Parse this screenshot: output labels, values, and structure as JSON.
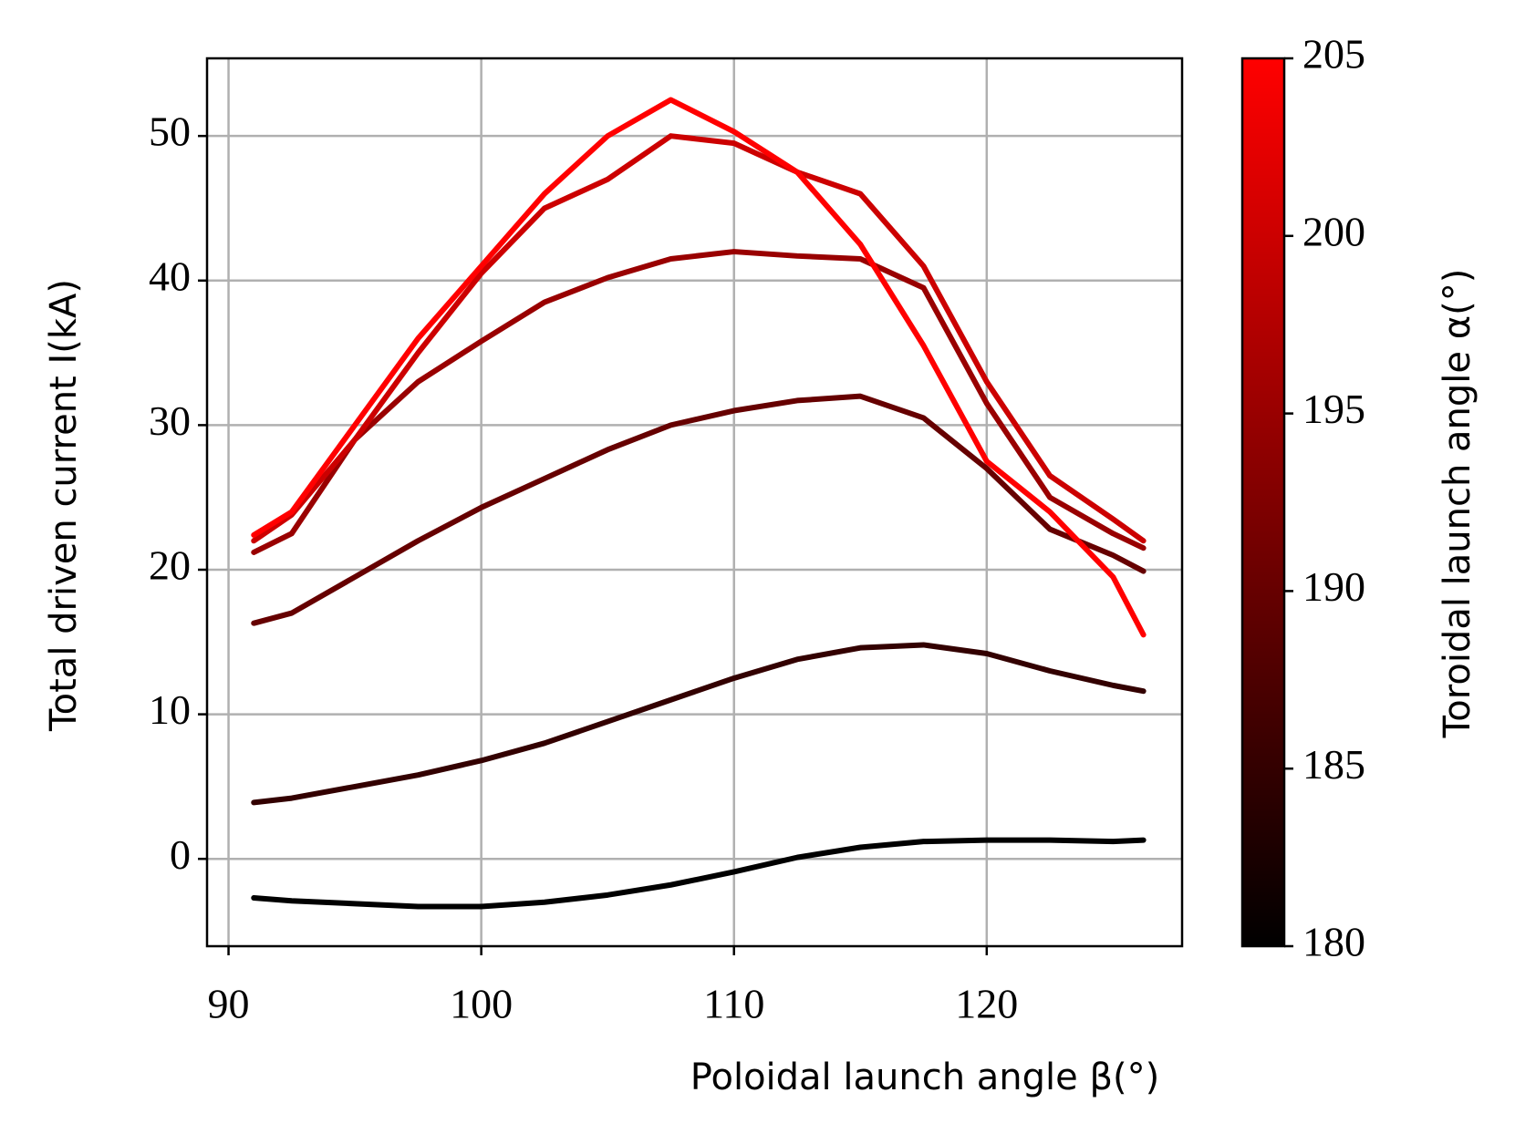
{
  "chart_data": {
    "type": "line",
    "xlabel": "Poloidal launch angle β(°)",
    "ylabel": "Total driven current I(kA)",
    "x": [
      91,
      92.5,
      95,
      97.5,
      100,
      102.5,
      105,
      107.5,
      110,
      112.5,
      115,
      117.5,
      120,
      122.5,
      125,
      126.2
    ],
    "series": [
      {
        "color": "#000000",
        "values": [
          -2.7,
          -2.9,
          -3.1,
          -3.3,
          -3.3,
          -3.0,
          -2.5,
          -1.8,
          -0.9,
          0.1,
          0.8,
          1.2,
          1.3,
          1.3,
          1.2,
          1.3
        ]
      },
      {
        "color": "#330000",
        "values": [
          3.9,
          4.2,
          5.0,
          5.8,
          6.8,
          8.0,
          9.5,
          11.0,
          12.5,
          13.8,
          14.6,
          14.8,
          14.2,
          13.0,
          12.0,
          11.6
        ]
      },
      {
        "color": "#660000",
        "values": [
          16.3,
          17.0,
          19.5,
          22.0,
          24.3,
          26.3,
          28.3,
          30.0,
          31.0,
          31.7,
          32.0,
          30.5,
          27.0,
          22.8,
          21.0,
          19.9
        ]
      },
      {
        "color": "#990000",
        "values": [
          21.2,
          22.5,
          29.0,
          33.0,
          35.8,
          38.5,
          40.2,
          41.5,
          42.0,
          41.7,
          41.5,
          39.5,
          31.5,
          25.0,
          22.5,
          21.5
        ]
      },
      {
        "color": "#cc0000",
        "values": [
          22.0,
          23.8,
          29.0,
          35.0,
          40.5,
          45.0,
          47.0,
          50.0,
          49.5,
          47.5,
          46.0,
          41.0,
          33.0,
          26.5,
          23.5,
          22.0
        ]
      },
      {
        "color": "#ff0000",
        "values": [
          22.4,
          24.0,
          30.0,
          36.0,
          41.0,
          46.0,
          50.0,
          52.5,
          50.3,
          47.5,
          42.5,
          35.5,
          27.5,
          24.0,
          19.5,
          15.5
        ]
      }
    ],
    "xlim": [
      89.15,
      127.73
    ],
    "ylim": [
      -6.04,
      55.37
    ],
    "xticks": [
      90,
      100,
      110,
      120
    ],
    "yticks": [
      0,
      10,
      20,
      30,
      40,
      50
    ],
    "grid": true,
    "colorbar": {
      "label": "Toroidal launch angle α(°)",
      "lim": [
        180,
        205
      ],
      "ticks": [
        180,
        185,
        190,
        195,
        200,
        205
      ],
      "colors": [
        "#000000",
        "#ff0000"
      ]
    }
  }
}
